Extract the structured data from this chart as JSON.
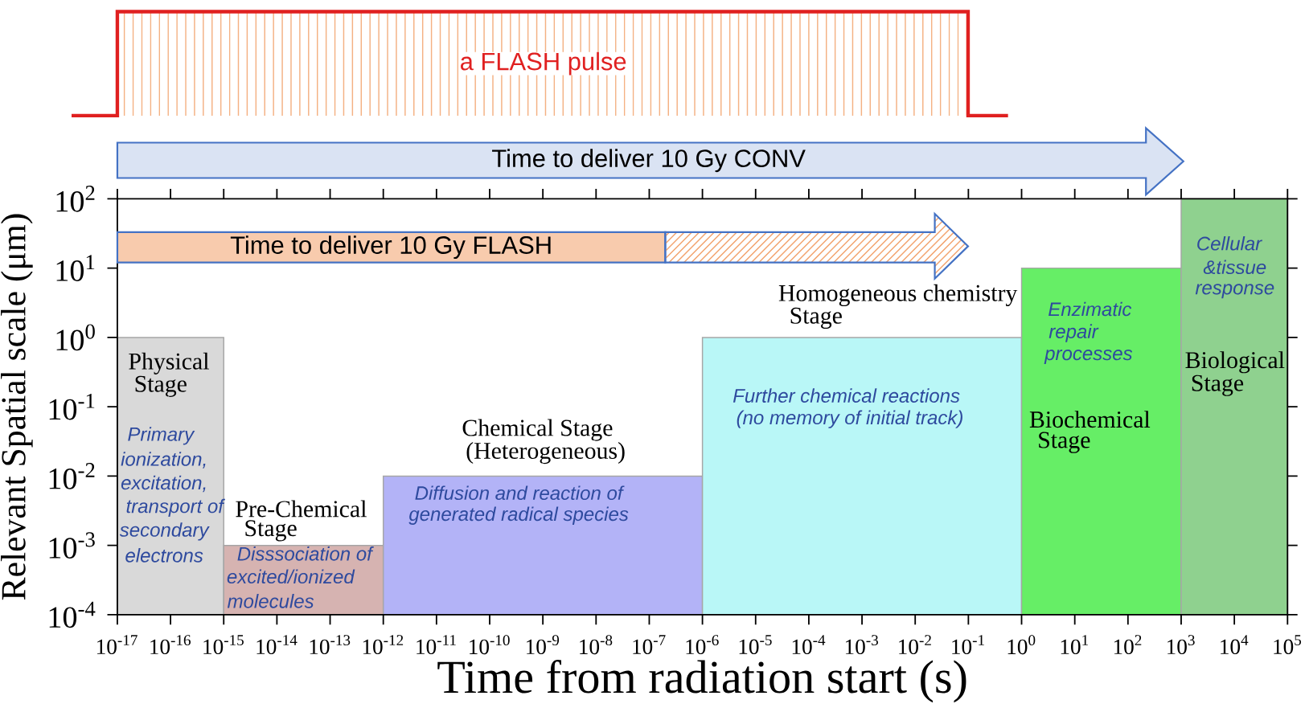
{
  "chart_data": {
    "type": "histogram",
    "xlabel": "Time from radiation start (s)",
    "ylabel": "Relevant Spatial scale (μm)",
    "log": "xy",
    "bins": [
      1e-17,
      1e-15,
      1e-12,
      1e-06,
      1,
      1000,
      100000
    ],
    "values": [
      1,
      0.001,
      0.01,
      1,
      10,
      100
    ],
    "colors": [
      "#d9d9d9",
      "#d6b3b1",
      "#b3b3f7",
      "#b9f7f7",
      "#66ee66",
      "#8fd18f"
    ],
    "xlim": [
      1e-17,
      100000
    ],
    "ylim": [
      0.0001,
      100
    ],
    "xticks": [
      {
        "value": 1e-17,
        "label": "10$^{-17}$"
      },
      {
        "value": 1e-16,
        "label": "10$^{-16}$"
      },
      {
        "value": 1e-15,
        "label": "10$^{-15}$"
      },
      {
        "value": 1e-14,
        "label": "10$^{-14}$"
      },
      {
        "value": 1e-13,
        "label": "10$^{-13}$"
      },
      {
        "value": 1e-12,
        "label": "10$^{-12}$"
      },
      {
        "value": 1e-11,
        "label": "10$^{-11}$"
      },
      {
        "value": 1e-10,
        "label": "10$^{-10}$"
      },
      {
        "value": 1e-09,
        "label": "10$^{-9}$"
      },
      {
        "value": 1e-08,
        "label": "10$^{-8}$"
      },
      {
        "value": 1e-07,
        "label": "10$^{-7}$"
      },
      {
        "value": 1e-06,
        "label": "10$^{-6}$"
      },
      {
        "value": 1e-05,
        "label": "10$^{-5}$"
      },
      {
        "value": 0.0001,
        "label": "10$^{-4}$"
      },
      {
        "value": 0.001,
        "label": "10$^{-3}$"
      },
      {
        "value": 0.01,
        "label": "10$^{-2}$"
      },
      {
        "value": 0.1,
        "label": "10$^{-1}$"
      },
      {
        "value": 1,
        "label": "10$^{0}$"
      },
      {
        "value": 10,
        "label": "10$^{1}$"
      },
      {
        "value": 100,
        "label": "10$^{2}$"
      },
      {
        "value": 1000,
        "label": "10$^{3}$"
      },
      {
        "value": 10000,
        "label": "10$^{4}$"
      },
      {
        "value": 100000,
        "label": "10$^{5}$"
      }
    ],
    "yticks": [
      {
        "value": 0.0001,
        "label": "10$^{-4}$"
      },
      {
        "value": 0.001,
        "label": "10$^{-3}$"
      },
      {
        "value": 0.01,
        "label": "10$^{-2}$"
      },
      {
        "value": 0.1,
        "label": "10$^{-1}$"
      },
      {
        "value": 1,
        "label": "10$^{0}$"
      },
      {
        "value": 10,
        "label": "10$^{1}$"
      },
      {
        "value": 100,
        "label": "10$^{2}$"
      }
    ],
    "bands": [
      {
        "axis": "x",
        "from": 1e-17,
        "to": 2e-07,
        "label": "Time to deliver 10 Gy FLASH",
        "color": "#f8cbad"
      }
    ],
    "annotations": [
      "Physical",
      "Stage",
      "Primary",
      "ionization,",
      "excitation,",
      "transport of",
      "secondary",
      "electrons",
      "Pre-Chemical",
      "Stage",
      "Disssociation of",
      "excited/ionized",
      "molecules",
      "Chemical Stage",
      "(Heterogeneous)",
      "Diffusion and reaction of",
      "generated radical species",
      "Homogeneous chemistry",
      "Stage",
      "Further chemical reactions",
      "(no memory of initial track)",
      "Enzimatic",
      "repair",
      "processes",
      "Biochemical",
      "Stage",
      "Cellular",
      "&tissue",
      "response",
      "Biological",
      "Stage",
      "a FLASH pulse",
      "Time to deliver 10 Gy CONV"
    ]
  }
}
